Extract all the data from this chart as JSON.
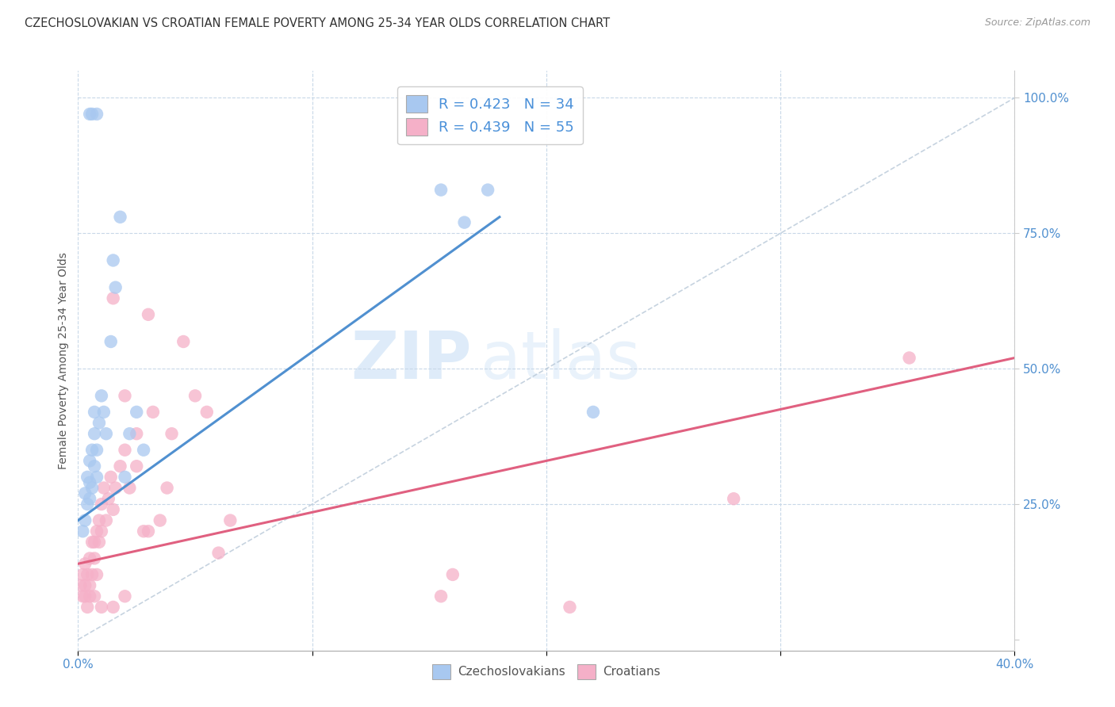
{
  "title": "CZECHOSLOVAKIAN VS CROATIAN FEMALE POVERTY AMONG 25-34 YEAR OLDS CORRELATION CHART",
  "source": "Source: ZipAtlas.com",
  "ylabel": "Female Poverty Among 25-34 Year Olds",
  "xlim": [
    0.0,
    0.4
  ],
  "ylim": [
    -0.02,
    1.05
  ],
  "czech_R": 0.423,
  "czech_N": 34,
  "croatian_R": 0.439,
  "croatian_N": 55,
  "czech_color": "#a8c8f0",
  "croatian_color": "#f5b0c8",
  "czech_line_color": "#5090d0",
  "croatian_line_color": "#e06080",
  "ref_line_color": "#b8c8d8",
  "legend_text_color": "#4a90d9",
  "title_color": "#333333",
  "axis_color": "#5090d0",
  "grid_color": "#c8d8e8",
  "watermark_zip": "ZIP",
  "watermark_atlas": "atlas",
  "czech_line_x0": 0.0,
  "czech_line_y0": 0.22,
  "czech_line_x1": 0.18,
  "czech_line_y1": 0.78,
  "croatian_line_x0": 0.0,
  "croatian_line_y0": 0.14,
  "croatian_line_x1": 0.4,
  "croatian_line_y1": 0.52,
  "czech_x": [
    0.002,
    0.003,
    0.003,
    0.004,
    0.004,
    0.005,
    0.005,
    0.005,
    0.006,
    0.006,
    0.007,
    0.007,
    0.007,
    0.008,
    0.008,
    0.009,
    0.01,
    0.011,
    0.012,
    0.014,
    0.015,
    0.016,
    0.018,
    0.02,
    0.022,
    0.025,
    0.028,
    0.155,
    0.165,
    0.175,
    0.005,
    0.006,
    0.008,
    0.22
  ],
  "czech_y": [
    0.2,
    0.22,
    0.27,
    0.25,
    0.3,
    0.26,
    0.29,
    0.33,
    0.35,
    0.28,
    0.32,
    0.38,
    0.42,
    0.3,
    0.35,
    0.4,
    0.45,
    0.42,
    0.38,
    0.55,
    0.7,
    0.65,
    0.78,
    0.3,
    0.38,
    0.42,
    0.35,
    0.83,
    0.77,
    0.83,
    0.97,
    0.97,
    0.97,
    0.42
  ],
  "croatian_x": [
    0.001,
    0.002,
    0.002,
    0.003,
    0.003,
    0.003,
    0.004,
    0.004,
    0.005,
    0.005,
    0.005,
    0.006,
    0.006,
    0.007,
    0.007,
    0.007,
    0.008,
    0.008,
    0.009,
    0.009,
    0.01,
    0.01,
    0.011,
    0.012,
    0.013,
    0.014,
    0.015,
    0.016,
    0.018,
    0.02,
    0.022,
    0.025,
    0.028,
    0.03,
    0.032,
    0.035,
    0.038,
    0.04,
    0.045,
    0.05,
    0.055,
    0.06,
    0.065,
    0.155,
    0.16,
    0.21,
    0.015,
    0.02,
    0.025,
    0.03,
    0.01,
    0.015,
    0.02,
    0.28,
    0.355
  ],
  "croatian_y": [
    0.1,
    0.12,
    0.08,
    0.1,
    0.14,
    0.08,
    0.12,
    0.06,
    0.1,
    0.15,
    0.08,
    0.12,
    0.18,
    0.15,
    0.18,
    0.08,
    0.12,
    0.2,
    0.18,
    0.22,
    0.2,
    0.25,
    0.28,
    0.22,
    0.26,
    0.3,
    0.24,
    0.28,
    0.32,
    0.35,
    0.28,
    0.32,
    0.2,
    0.6,
    0.42,
    0.22,
    0.28,
    0.38,
    0.55,
    0.45,
    0.42,
    0.16,
    0.22,
    0.08,
    0.12,
    0.06,
    0.63,
    0.45,
    0.38,
    0.2,
    0.06,
    0.06,
    0.08,
    0.26,
    0.52
  ]
}
